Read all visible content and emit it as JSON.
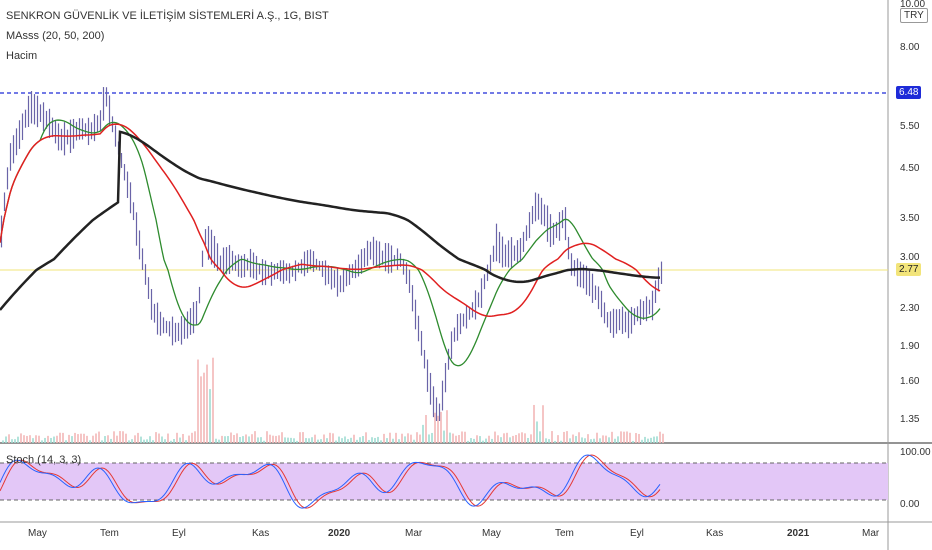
{
  "header": {
    "title": "SENKRON GÜVENLİK VE İLETİŞİM SİSTEMLERİ A.Ş., 1G, BIST",
    "ma_label": "MAsss",
    "ma_params": "(20, 50, 200)",
    "volume_label": "Hacim",
    "stoch_label": "Stoch (14, 3, 3)",
    "currency": "TRY"
  },
  "price_axis": {
    "ticks": [
      "10.00",
      "8.00",
      "6.48",
      "5.50",
      "4.50",
      "3.50",
      "3.00",
      "2.77",
      "2.30",
      "1.90",
      "1.60",
      "1.35"
    ],
    "dashed_level": 6.48,
    "last_price": 2.77
  },
  "stoch_axis": {
    "ticks": [
      "100.00",
      "0.00"
    ]
  },
  "time_axis": {
    "ticks": [
      "May",
      "Tem",
      "Eyl",
      "Kas",
      "2020",
      "Mar",
      "May",
      "Tem",
      "Eyl",
      "Kas",
      "2021",
      "Mar"
    ]
  },
  "colors": {
    "candle": "#6a64a8",
    "ma20": "#2e8b2e",
    "ma50": "#e02020",
    "ma200": "#222222",
    "dashed_level": "#1e2bd8",
    "last_price_line": "#f2e47a",
    "stoch_k": "#2962ff",
    "stoch_d": "#e53935",
    "stoch_band": "#e3c7f7"
  },
  "chart_data": {
    "type": "line",
    "series": [
      {
        "x": 0,
        "y": 3.2
      },
      {
        "x": 10,
        "y": 4.8
      },
      {
        "x": 20,
        "y": 5.4
      },
      {
        "x": 30,
        "y": 6.1
      },
      {
        "x": 40,
        "y": 5.9
      },
      {
        "x": 50,
        "y": 5.6
      },
      {
        "x": 60,
        "y": 5.2
      },
      {
        "x": 70,
        "y": 5.3
      },
      {
        "x": 80,
        "y": 5.5
      },
      {
        "x": 90,
        "y": 5.4
      },
      {
        "x": 100,
        "y": 5.7
      },
      {
        "x": 105,
        "y": 6.5
      },
      {
        "x": 112,
        "y": 5.6
      },
      {
        "x": 120,
        "y": 4.8
      },
      {
        "x": 128,
        "y": 4.1
      },
      {
        "x": 136,
        "y": 3.4
      },
      {
        "x": 144,
        "y": 2.8
      },
      {
        "x": 152,
        "y": 2.3
      },
      {
        "x": 160,
        "y": 2.15
      },
      {
        "x": 168,
        "y": 2.1
      },
      {
        "x": 176,
        "y": 2.05
      },
      {
        "x": 184,
        "y": 2.1
      },
      {
        "x": 192,
        "y": 2.2
      },
      {
        "x": 198,
        "y": 2.3
      },
      {
        "x": 204,
        "y": 3.3
      },
      {
        "x": 212,
        "y": 3.1
      },
      {
        "x": 220,
        "y": 2.9
      },
      {
        "x": 230,
        "y": 2.95
      },
      {
        "x": 240,
        "y": 2.85
      },
      {
        "x": 250,
        "y": 2.9
      },
      {
        "x": 260,
        "y": 2.8
      },
      {
        "x": 270,
        "y": 2.75
      },
      {
        "x": 280,
        "y": 2.8
      },
      {
        "x": 290,
        "y": 2.75
      },
      {
        "x": 300,
        "y": 2.85
      },
      {
        "x": 310,
        "y": 2.95
      },
      {
        "x": 320,
        "y": 2.85
      },
      {
        "x": 330,
        "y": 2.7
      },
      {
        "x": 340,
        "y": 2.6
      },
      {
        "x": 350,
        "y": 2.75
      },
      {
        "x": 360,
        "y": 2.9
      },
      {
        "x": 370,
        "y": 3.1
      },
      {
        "x": 380,
        "y": 3.0
      },
      {
        "x": 390,
        "y": 2.95
      },
      {
        "x": 400,
        "y": 2.95
      },
      {
        "x": 408,
        "y": 2.7
      },
      {
        "x": 414,
        "y": 2.3
      },
      {
        "x": 420,
        "y": 2.0
      },
      {
        "x": 426,
        "y": 1.7
      },
      {
        "x": 432,
        "y": 1.5
      },
      {
        "x": 438,
        "y": 1.35
      },
      {
        "x": 444,
        "y": 1.6
      },
      {
        "x": 450,
        "y": 1.9
      },
      {
        "x": 456,
        "y": 2.1
      },
      {
        "x": 464,
        "y": 2.2
      },
      {
        "x": 472,
        "y": 2.3
      },
      {
        "x": 480,
        "y": 2.45
      },
      {
        "x": 488,
        "y": 2.8
      },
      {
        "x": 496,
        "y": 3.2
      },
      {
        "x": 504,
        "y": 3.0
      },
      {
        "x": 512,
        "y": 3.05
      },
      {
        "x": 520,
        "y": 3.1
      },
      {
        "x": 528,
        "y": 3.4
      },
      {
        "x": 536,
        "y": 3.8
      },
      {
        "x": 544,
        "y": 3.6
      },
      {
        "x": 552,
        "y": 3.3
      },
      {
        "x": 558,
        "y": 3.4
      },
      {
        "x": 564,
        "y": 3.6
      },
      {
        "x": 570,
        "y": 2.9
      },
      {
        "x": 576,
        "y": 2.8
      },
      {
        "x": 584,
        "y": 2.7
      },
      {
        "x": 592,
        "y": 2.55
      },
      {
        "x": 600,
        "y": 2.4
      },
      {
        "x": 606,
        "y": 2.2
      },
      {
        "x": 612,
        "y": 2.15
      },
      {
        "x": 620,
        "y": 2.2
      },
      {
        "x": 628,
        "y": 2.15
      },
      {
        "x": 636,
        "y": 2.25
      },
      {
        "x": 644,
        "y": 2.3
      },
      {
        "x": 652,
        "y": 2.35
      },
      {
        "x": 660,
        "y": 2.77
      }
    ]
  }
}
